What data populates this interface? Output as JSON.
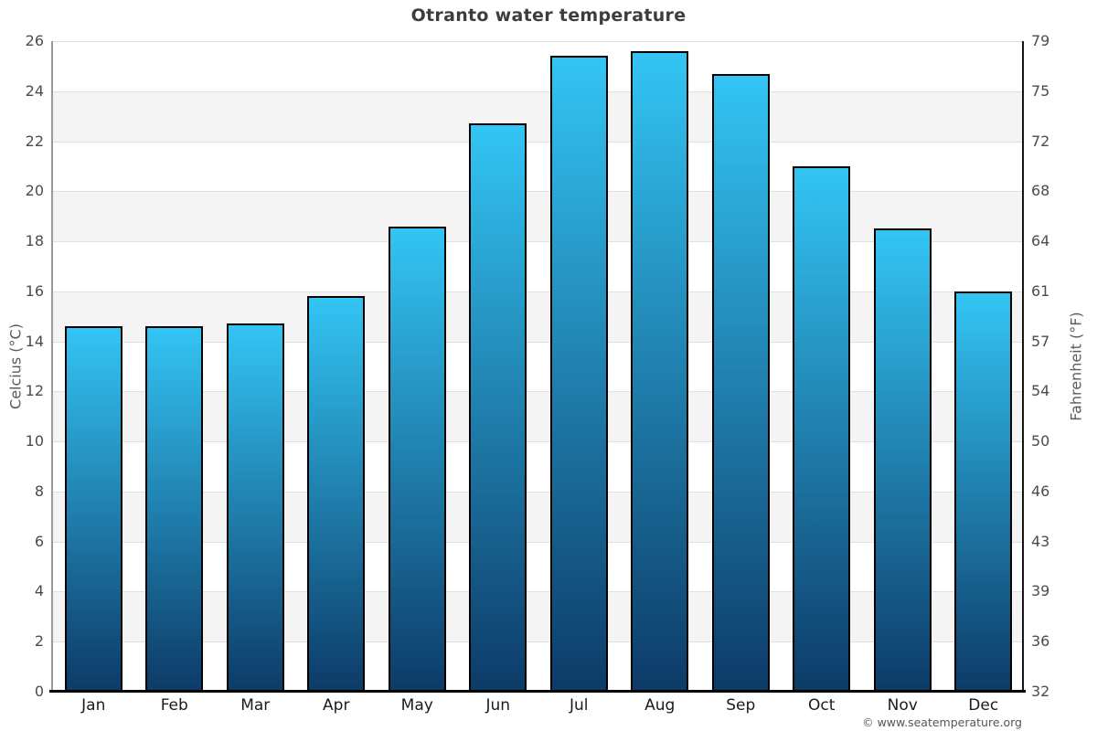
{
  "title": "Otranto water temperature",
  "footer": {
    "credit": "© www.seatemperature.org"
  },
  "chart_data": {
    "type": "bar",
    "title": "Otranto water temperature",
    "categories": [
      "Jan",
      "Feb",
      "Mar",
      "Apr",
      "May",
      "Jun",
      "Jul",
      "Aug",
      "Sep",
      "Oct",
      "Nov",
      "Dec"
    ],
    "values": [
      14.6,
      14.6,
      14.7,
      15.8,
      18.6,
      22.7,
      25.4,
      25.6,
      24.7,
      21.0,
      18.5,
      16.0
    ],
    "xlabel": "",
    "ylabel": "Celcius (°C)",
    "ylabel_right": "Fahrenheit (°F)",
    "ylim": [
      0,
      26
    ],
    "ticks_celsius": [
      0,
      2,
      4,
      6,
      8,
      10,
      12,
      14,
      16,
      18,
      20,
      22,
      24,
      26
    ],
    "ticks_fahrenheit": [
      "32",
      "36",
      "39",
      "43",
      "46",
      "50",
      "54",
      "57",
      "61",
      "64",
      "68",
      "72",
      "75",
      "79"
    ],
    "grid": "horizontal",
    "legend": "none",
    "colors": {
      "bar_top": "#33c5f4",
      "bar_bottom": "#0d3b68",
      "bar_border": "#000000",
      "band_light": "#ffffff",
      "band_gray": "#f4f4f4",
      "gridline": "#e0e0e0",
      "title_text": "#3d3d3d",
      "tick_text": "#4c4c4c"
    }
  }
}
